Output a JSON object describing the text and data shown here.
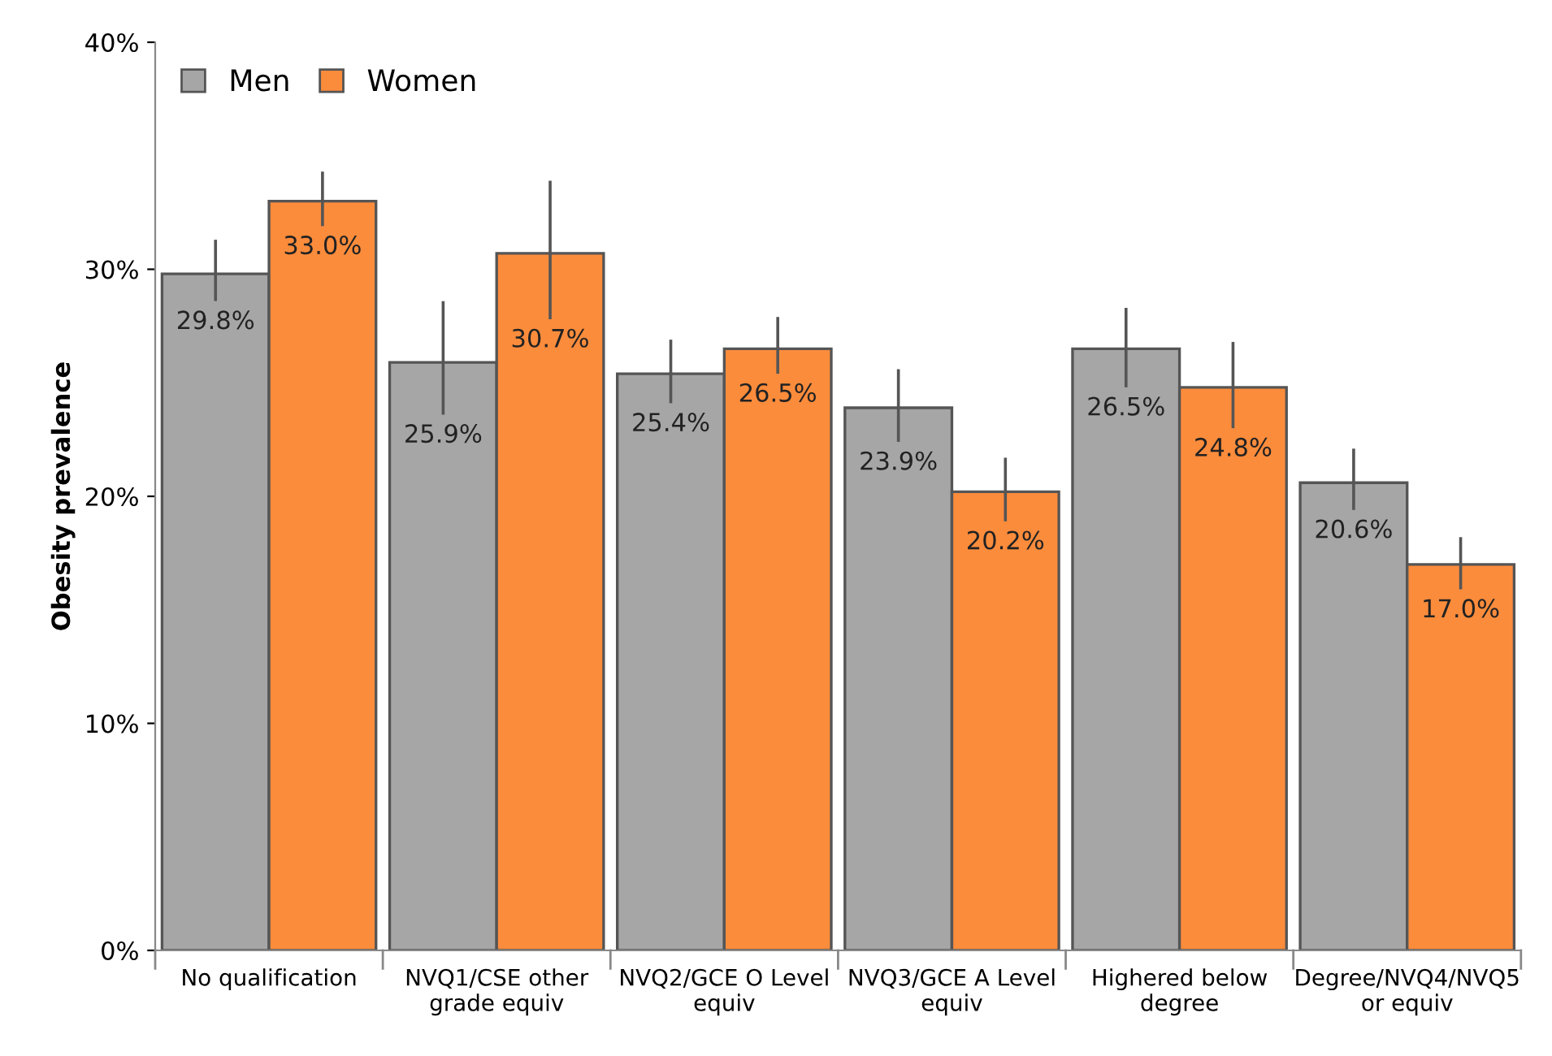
{
  "chart_data": {
    "type": "bar",
    "ylabel": "Obesity prevalence",
    "categories": [
      "No qualification",
      "NVQ1/CSE other\ngrade equiv",
      "NVQ2/GCE O Level\nequiv",
      "NVQ3/GCE A Level\nequiv",
      "Highered below\ndegree",
      "Degree/NVQ4/NVQ5\nor equiv"
    ],
    "series": [
      {
        "name": "Men",
        "color": "#a6a6a6",
        "values": [
          29.8,
          25.9,
          25.4,
          23.9,
          26.5,
          20.6
        ],
        "value_labels": [
          "29.8%",
          "25.9%",
          "25.4%",
          "23.9%",
          "26.5%",
          "20.6%"
        ],
        "errors": [
          [
            28.6,
            31.3
          ],
          [
            23.6,
            28.6
          ],
          [
            24.1,
            26.9
          ],
          [
            22.4,
            25.6
          ],
          [
            24.8,
            28.3
          ],
          [
            19.4,
            22.1
          ]
        ]
      },
      {
        "name": "Women",
        "color": "#fb8c3c",
        "values": [
          33.0,
          30.7,
          26.5,
          20.2,
          24.8,
          17.0
        ],
        "value_labels": [
          "33.0%",
          "30.7%",
          "26.5%",
          "20.2%",
          "24.8%",
          "17.0%"
        ],
        "errors": [
          [
            31.9,
            34.3
          ],
          [
            27.8,
            33.9
          ],
          [
            25.4,
            27.9
          ],
          [
            18.9,
            21.7
          ],
          [
            23.0,
            26.8
          ],
          [
            15.9,
            18.2
          ]
        ]
      }
    ],
    "ylim": [
      0,
      40
    ],
    "yticks": [
      {
        "value": 0,
        "label": "0%"
      },
      {
        "value": 10,
        "label": "10%"
      },
      {
        "value": 20,
        "label": "20%"
      },
      {
        "value": 30,
        "label": "30%"
      },
      {
        "value": 40,
        "label": "40%"
      }
    ],
    "grid": false,
    "legend": "top left"
  }
}
